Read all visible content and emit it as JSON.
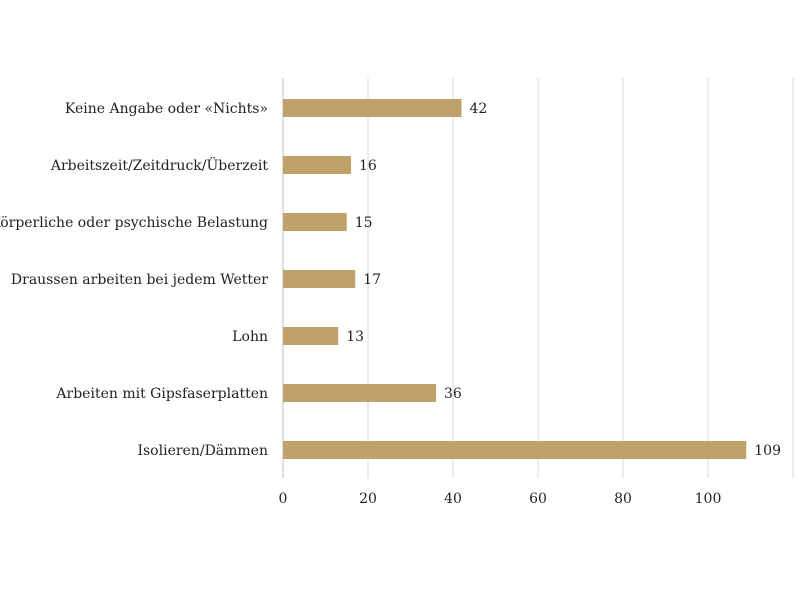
{
  "chart_data": {
    "type": "bar",
    "orientation": "horizontal",
    "title": "",
    "xlabel": "",
    "ylabel": "",
    "categories": [
      "Keine Angabe oder «Nichts»",
      "Arbeitszeit/Zeitdruck/Überzeit",
      "Körperliche oder psychische Belastung",
      "Draussen arbeiten bei jedem Wetter",
      "Lohn",
      "Arbeiten mit Gipsfaserplatten",
      "Isolieren/Dämmen"
    ],
    "values": [
      42,
      16,
      15,
      17,
      13,
      36,
      109
    ],
    "value_labels": [
      "42",
      "16",
      "15",
      "17",
      "13",
      "36",
      "109"
    ],
    "xlim": [
      0,
      120
    ],
    "x_ticks": [
      0,
      20,
      40,
      60,
      80,
      100
    ],
    "x_tick_labels": [
      "0",
      "20",
      "40",
      "60",
      "80",
      "100"
    ],
    "grid": "vertical",
    "legend": "none",
    "bar_color": "#bfa26a",
    "grid_color": "#d9d9d9"
  }
}
